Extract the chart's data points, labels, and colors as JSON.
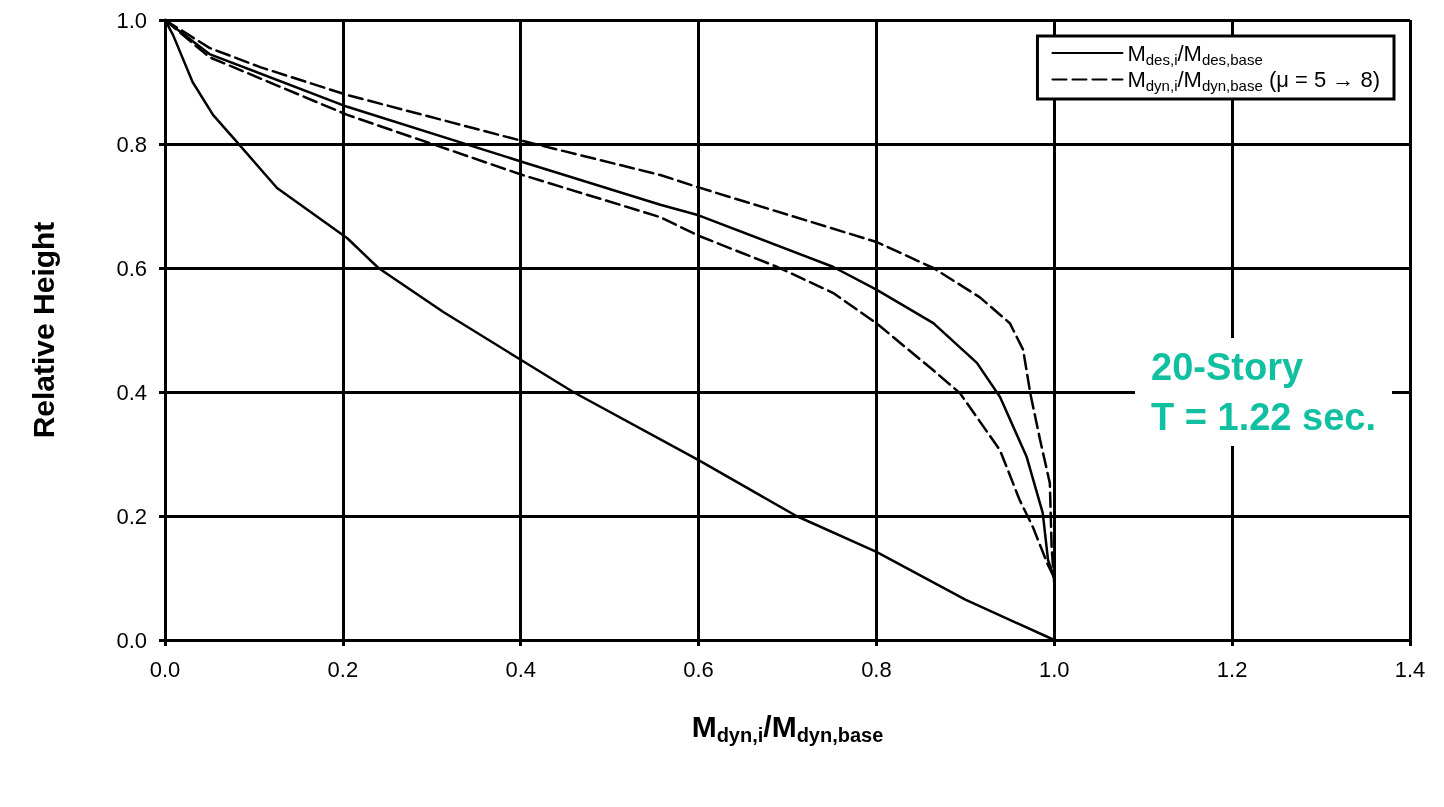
{
  "chart_data": {
    "type": "line",
    "xlabel": "M$_{dyn,i}$/M$_{dyn,base}$",
    "ylabel": "Relative Height",
    "xlim": [
      0,
      1.4
    ],
    "xticks": [
      {
        "value": 0,
        "label": "0.0"
      },
      0.2,
      0.4,
      0.6,
      0.8,
      {
        "value": 1,
        "label": "1.0"
      },
      1.2,
      1.4
    ],
    "ylim": [
      0,
      1
    ],
    "yticks": [
      {
        "value": 0,
        "label": "0.0"
      },
      0.2,
      0.4,
      0.6,
      0.8,
      {
        "value": 1,
        "label": "1.0"
      }
    ],
    "grid": true,
    "legend": "top right",
    "marker": "none",
    "annotations": [
      "20-Story",
      "T = 1.22 sec."
    ],
    "series": [
      {
        "name": "M$_{des,i}$/M$_{des,base}$",
        "color": "#000000",
        "line_style": "solid",
        "x": [
          0,
          0.009,
          0.031,
          0.054,
          0.081,
          0.126,
          0.205,
          0.24,
          0.313,
          0.4,
          0.459,
          0.6,
          0.71,
          0.8,
          0.9,
          1.0
        ],
        "values": [
          1.0,
          0.976,
          0.9,
          0.847,
          0.803,
          0.729,
          0.648,
          0.6,
          0.529,
          0.452,
          0.4,
          0.29,
          0.2,
          0.142,
          0.065,
          0.0
        ]
      },
      {
        "name": "M$_{dyn,i}$/M$_{dyn,base}$ (μ = 5 → 8)",
        "color": "#000000",
        "line_style": "dashed",
        "x": [
          0,
          0.05,
          0.107,
          0.205,
          0.388,
          0.557,
          0.6,
          0.8,
          0.864,
          0.916,
          0.95,
          0.965,
          0.973,
          0.984,
          0.995,
          0.997,
          1.0
        ],
        "values": [
          1.0,
          0.955,
          0.924,
          0.879,
          0.81,
          0.75,
          0.73,
          0.642,
          0.6,
          0.553,
          0.511,
          0.468,
          0.398,
          0.323,
          0.253,
          0.15,
          0.09
        ]
      },
      {
        "color": "#000000",
        "line_style": "solid",
        "x": [
          0,
          0.05,
          0.205,
          0.402,
          0.557,
          0.6,
          0.751,
          0.8,
          0.864,
          0.913,
          0.939,
          0.969,
          0.987,
          0.993,
          1.0
        ],
        "values": [
          1.0,
          0.945,
          0.86,
          0.771,
          0.702,
          0.685,
          0.602,
          0.565,
          0.511,
          0.447,
          0.392,
          0.295,
          0.205,
          0.129,
          0.1
        ]
      },
      {
        "color": "#000000",
        "line_style": "dashed",
        "x": [
          0,
          0.05,
          0.205,
          0.402,
          0.557,
          0.6,
          0.688,
          0.751,
          0.8,
          0.864,
          0.894,
          0.939,
          0.961,
          0.976,
          0.992,
          1.0
        ],
        "values": [
          1.0,
          0.94,
          0.847,
          0.75,
          0.682,
          0.652,
          0.602,
          0.56,
          0.511,
          0.435,
          0.398,
          0.306,
          0.226,
          0.182,
          0.124,
          0.1
        ]
      }
    ]
  }
}
